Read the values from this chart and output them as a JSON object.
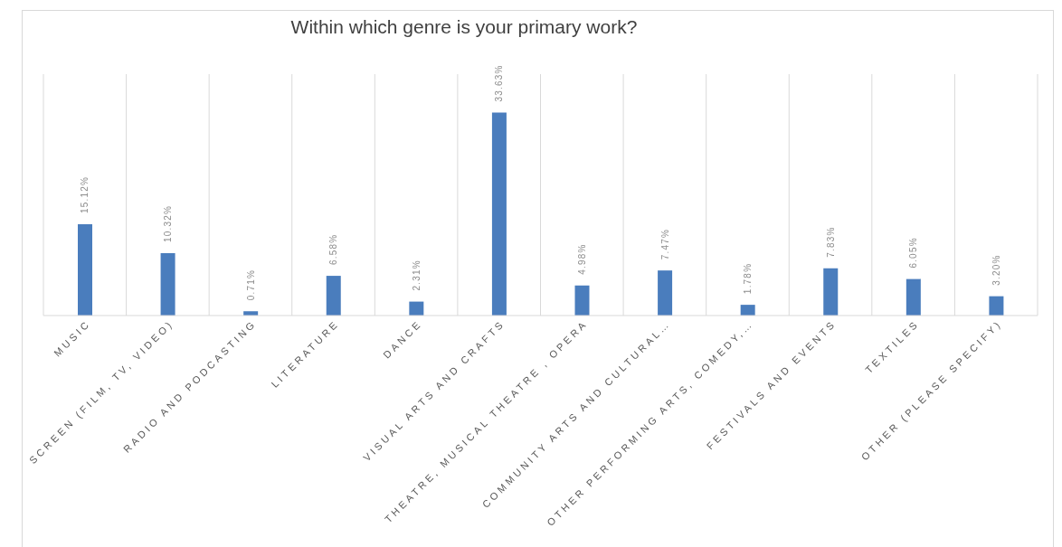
{
  "chart_data": {
    "type": "bar",
    "title": "Within which genre is your primary work?",
    "categories": [
      "MUSIC",
      "SCREEN (FILM, TV, VIDEO)",
      "RADIO AND PODCASTING",
      "LITERATURE",
      "DANCE",
      "VISUAL ARTS AND CRAFTS",
      "THEATRE, MUSICAL THEATRE , OPERA",
      "COMMUNITY ARTS AND CULTURAL…",
      "OTHER PERFORMING ARTS, COMEDY,…",
      "FESTIVALS AND EVENTS",
      "TEXTILES",
      "OTHER (PLEASE SPECIFY)"
    ],
    "values": [
      15.12,
      10.32,
      0.71,
      6.58,
      2.31,
      33.63,
      4.98,
      7.47,
      1.78,
      7.83,
      6.05,
      3.2
    ],
    "value_labels": [
      "15.12%",
      "10.32%",
      "0.71%",
      "6.58%",
      "2.31%",
      "33.63%",
      "4.98%",
      "7.47%",
      "1.78%",
      "7.83%",
      "6.05%",
      "3.20%"
    ],
    "color": "#4a7dbd",
    "grid": "x",
    "tick_labels": "x"
  }
}
